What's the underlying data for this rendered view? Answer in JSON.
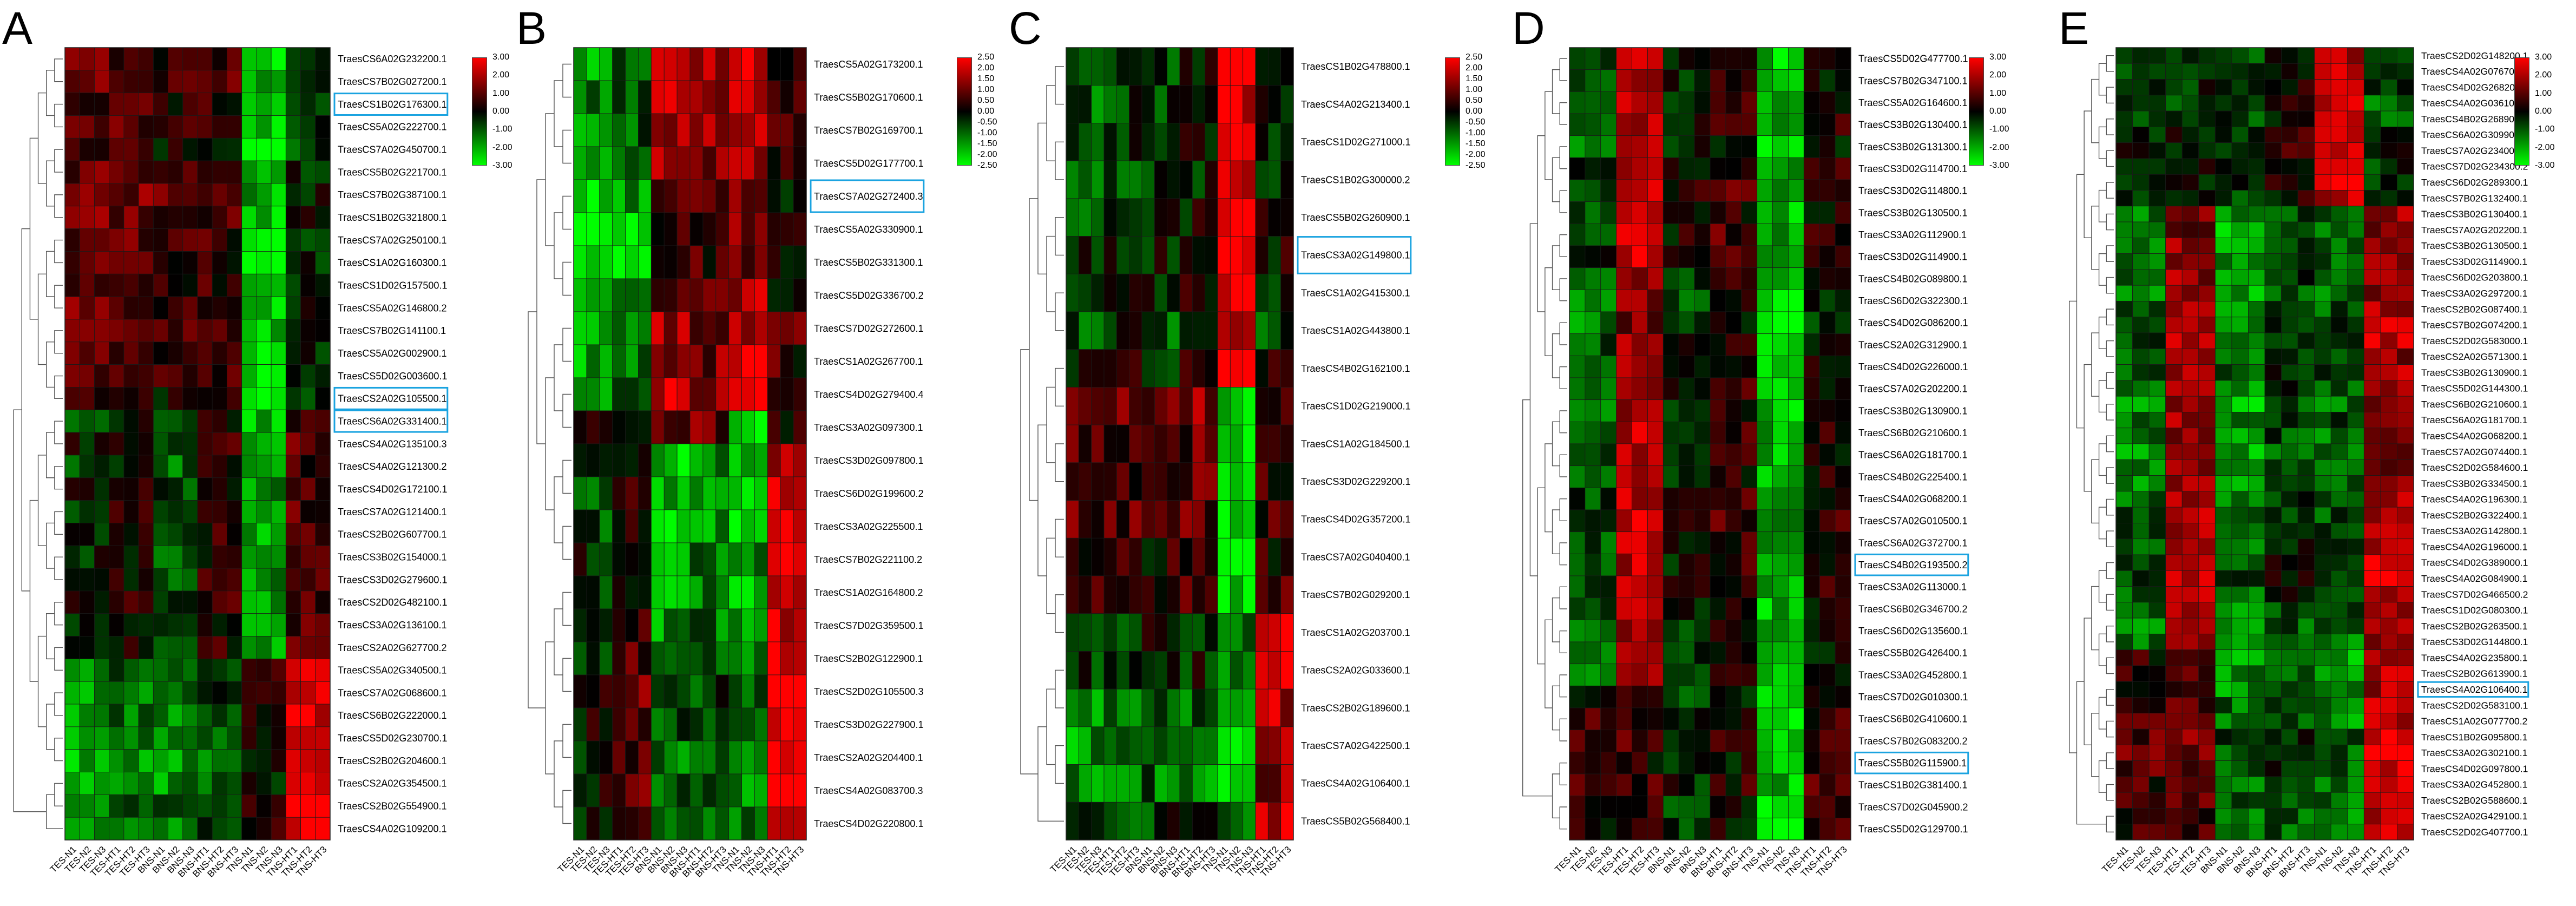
{
  "chart_data": [
    {
      "type": "heatmap",
      "panel": "A",
      "columns": [
        "TES-N1",
        "TES-N2",
        "TES-N3",
        "TES-HT1",
        "TES-HT2",
        "TES-HT3",
        "BNS-N1",
        "BNS-N2",
        "BNS-N3",
        "BNS-HT1",
        "BNS-HT2",
        "BNS-HT3",
        "TNS-N1",
        "TNS-N2",
        "TNS-N3",
        "TNS-HT1",
        "TNS-HT2",
        "TNS-HT3"
      ],
      "rows": [
        "TraesCS6A02G232200.1",
        "TraesCS7B02G027200.1",
        "TraesCS1B02G176300.1",
        "TraesCS5A02G222700.1",
        "TraesCS7A02G450700.1",
        "TraesCS5B02G221700.1",
        "TraesCS7B02G387100.1",
        "TraesCS1B02G321800.1",
        "TraesCS7A02G250100.1",
        "TraesCS1A02G160300.1",
        "TraesCS1D02G157500.1",
        "TraesCS5A02G146800.2",
        "TraesCS7B02G141100.1",
        "TraesCS5A02G002900.1",
        "TraesCS5D02G003600.1",
        "TraesCS2A02G105500.1",
        "TraesCS6A02G331400.1",
        "TraesCS4A02G135100.3",
        "TraesCS4A02G121300.2",
        "TraesCS4D02G172100.1",
        "TraesCS7A02G121400.1",
        "TraesCS2B02G607700.1",
        "TraesCS3B02G154000.1",
        "TraesCS3D02G279600.1",
        "TraesCS2D02G482100.1",
        "TraesCS3A02G136100.1",
        "TraesCS2A02G627700.2",
        "TraesCS5A02G340500.1",
        "TraesCS7A02G068600.1",
        "TraesCS6B02G222000.1",
        "TraesCS5D02G230700.1",
        "TraesCS2B02G204600.1",
        "TraesCS2A02G354500.1",
        "TraesCS2B02G554900.1",
        "TraesCS4A02G109200.1"
      ],
      "highlighted_rows": [
        "TraesCS1B02G176300.1",
        "TraesCS2A02G105500.1",
        "TraesCS6A02G331400.1"
      ],
      "value_range": [
        -3,
        3
      ],
      "legend_ticks": [
        "3.00",
        "2.00",
        "1.00",
        "0.00",
        "-1.00",
        "-2.00",
        "-3.00"
      ],
      "colors": {
        "high": "#ff0000",
        "mid": "#000000",
        "low": "#00ff00",
        "highlight_box": "#1aa3e0"
      },
      "pattern": "top block high in TES/BNS, low in TNS-N; middle block mixed; bottom block high in TNS-HT"
    },
    {
      "type": "heatmap",
      "panel": "B",
      "columns": [
        "TES-N1",
        "TES-N2",
        "TES-N3",
        "TES-HT1",
        "TES-HT2",
        "TES-HT3",
        "BNS-N1",
        "BNS-N2",
        "BNS-N3",
        "BNS-HT1",
        "BNS-HT2",
        "BNS-HT3",
        "TNS-N1",
        "TNS-N2",
        "TNS-N3",
        "TNS-HT1",
        "TNS-HT2",
        "TNS-HT3"
      ],
      "rows": [
        "TraesCS5A02G173200.1",
        "TraesCS5B02G170600.1",
        "TraesCS7B02G169700.1",
        "TraesCS5D02G177700.1",
        "TraesCS7A02G272400.3",
        "TraesCS5A02G330900.1",
        "TraesCS5B02G331300.1",
        "TraesCS5D02G336700.2",
        "TraesCS7D02G272600.1",
        "TraesCS1A02G267700.1",
        "TraesCS4D02G279400.4",
        "TraesCS3A02G097300.1",
        "TraesCS3D02G097800.1",
        "TraesCS6D02G199600.2",
        "TraesCS3A02G225500.1",
        "TraesCS7B02G221100.2",
        "TraesCS1A02G164800.2",
        "TraesCS7D02G359500.1",
        "TraesCS2B02G122900.1",
        "TraesCS2D02G105500.3",
        "TraesCS3D02G227900.1",
        "TraesCS2A02G204400.1",
        "TraesCS4A02G083700.3",
        "TraesCS4D02G220800.1"
      ],
      "highlighted_rows": [
        "TraesCS7A02G272400.3"
      ],
      "value_range": [
        -2.5,
        2.5
      ],
      "legend_ticks": [
        "2.50",
        "2.00",
        "1.50",
        "1.00",
        "0.50",
        "0.00",
        "-0.50",
        "-1.00",
        "-1.50",
        "-2.00",
        "-2.50"
      ],
      "colors": {
        "high": "#ff0000",
        "mid": "#000000",
        "low": "#00ff00",
        "highlight_box": "#1aa3e0"
      },
      "pattern": "top block low in TES, high in BNS/TNS; bottom block high in TNS-HT, low in BNS"
    },
    {
      "type": "heatmap",
      "panel": "C",
      "columns": [
        "TES-N1",
        "TES-N2",
        "TES-N3",
        "TES-HT1",
        "TES-HT2",
        "TES-HT3",
        "BNS-N1",
        "BNS-N2",
        "BNS-N3",
        "BNS-HT1",
        "BNS-HT2",
        "BNS-HT3",
        "TNS-N1",
        "TNS-N2",
        "TNS-N3",
        "TNS-HT1",
        "TNS-HT2",
        "TNS-HT3"
      ],
      "rows": [
        "TraesCS1B02G478800.1",
        "TraesCS4A02G213400.1",
        "TraesCS1D02G271000.1",
        "TraesCS1B02G300000.2",
        "TraesCS5B02G260900.1",
        "TraesCS3A02G149800.1",
        "TraesCS1A02G415300.1",
        "TraesCS1A02G443800.1",
        "TraesCS4B02G162100.1",
        "TraesCS1D02G219000.1",
        "TraesCS1A02G184500.1",
        "TraesCS3D02G229200.1",
        "TraesCS4D02G357200.1",
        "TraesCS7A02G040400.1",
        "TraesCS7B02G029200.1",
        "TraesCS1A02G203700.1",
        "TraesCS2A02G033600.1",
        "TraesCS2B02G189600.1",
        "TraesCS7A02G422500.1",
        "TraesCS4A02G106400.1",
        "TraesCS5B02G568400.1"
      ],
      "highlighted_rows": [
        "TraesCS3A02G149800.1"
      ],
      "value_range": [
        -2.5,
        2.5
      ],
      "legend_ticks": [
        "2.50",
        "2.00",
        "1.50",
        "1.00",
        "0.50",
        "0.00",
        "-0.50",
        "-1.00",
        "-1.50",
        "-2.00",
        "-2.50"
      ],
      "colors": {
        "high": "#ff0000",
        "mid": "#000000",
        "low": "#00ff00",
        "highlight_box": "#1aa3e0"
      },
      "pattern": "top block high in TNS-N; middle block high in TES/BNS, low in TNS-N; bottom block high in TNS-HT"
    },
    {
      "type": "heatmap",
      "panel": "D",
      "columns": [
        "TES-N1",
        "TES-N2",
        "TES-N3",
        "TES-HT1",
        "TES-HT2",
        "TES-HT3",
        "BNS-N1",
        "BNS-N2",
        "BNS-N3",
        "BNS-HT1",
        "BNS-HT2",
        "BNS-HT3",
        "TNS-N1",
        "TNS-N2",
        "TNS-N3",
        "TNS-HT1",
        "TNS-HT2",
        "TNS-HT3"
      ],
      "rows": [
        "TraesCS5D02G477700.1",
        "TraesCS7B02G347100.1",
        "TraesCS5A02G164600.1",
        "TraesCS3B02G130400.1",
        "TraesCS3B02G131300.1",
        "TraesCS3D02G114700.1",
        "TraesCS3D02G114800.1",
        "TraesCS3B02G130500.1",
        "TraesCS3A02G112900.1",
        "TraesCS3D02G114900.1",
        "TraesCS4B02G089800.1",
        "TraesCS6D02G322300.1",
        "TraesCS4D02G086200.1",
        "TraesCS2A02G312900.1",
        "TraesCS4D02G226000.1",
        "TraesCS7A02G202200.1",
        "TraesCS3B02G130900.1",
        "TraesCS6B02G210600.1",
        "TraesCS6A02G181700.1",
        "TraesCS4B02G225400.1",
        "TraesCS4A02G068200.1",
        "TraesCS7A02G010500.1",
        "TraesCS6A02G372700.1",
        "TraesCS4B02G193500.2",
        "TraesCS3A02G113000.1",
        "TraesCS6B02G346700.2",
        "TraesCS6D02G135600.1",
        "TraesCS5B02G426400.1",
        "TraesCS3A02G452800.1",
        "TraesCS7D02G010300.1",
        "TraesCS6B02G410600.1",
        "TraesCS7B02G083200.2",
        "TraesCS5B02G115900.1",
        "TraesCS1B02G381400.1",
        "TraesCS7D02G045900.2",
        "TraesCS5D02G129700.1"
      ],
      "highlighted_rows": [
        "TraesCS4B02G193500.2",
        "TraesCS5B02G115900.1"
      ],
      "value_range": [
        -3,
        3
      ],
      "legend_ticks": [
        "3.00",
        "2.00",
        "1.00",
        "0.00",
        "-1.00",
        "-2.00",
        "-3.00"
      ],
      "colors": {
        "high": "#ff0000",
        "mid": "#000000",
        "low": "#00ff00",
        "highlight_box": "#1aa3e0"
      },
      "pattern": "high in TES-HT, low in TNS-N across most rows"
    },
    {
      "type": "heatmap",
      "panel": "E",
      "columns": [
        "TES-N1",
        "TES-N2",
        "TES-N3",
        "TES-HT1",
        "TES-HT2",
        "TES-HT3",
        "BNS-N1",
        "BNS-N2",
        "BNS-N3",
        "BNS-HT1",
        "BNS-HT2",
        "BNS-HT3",
        "TNS-N1",
        "TNS-N2",
        "TNS-N3",
        "TNS-HT1",
        "TNS-HT2",
        "TNS-HT3"
      ],
      "rows": [
        "TraesCS2D02G148200.1",
        "TraesCS4A02G076700.1",
        "TraesCS4D02G268200.1",
        "TraesCS4A02G036100.1",
        "TraesCS4B02G268900.1",
        "TraesCS6A02G309900.1",
        "TraesCS7A02G234000.1",
        "TraesCS7D02G234300.2",
        "TraesCS6D02G289300.1",
        "TraesCS7B02G132400.1",
        "TraesCS3B02G130400.1",
        "TraesCS7A02G202200.1",
        "TraesCS3B02G130500.1",
        "TraesCS3D02G114900.1",
        "TraesCS6D02G203800.1",
        "TraesCS3A02G297200.1",
        "TraesCS2B02G087400.1",
        "TraesCS7B02G074200.1",
        "TraesCS2D02G583000.1",
        "TraesCS2A02G571300.1",
        "TraesCS3B02G130900.1",
        "TraesCS5D02G144300.1",
        "TraesCS6B02G210600.1",
        "TraesCS6A02G181700.1",
        "TraesCS4A02G068200.1",
        "TraesCS7A02G074400.1",
        "TraesCS2D02G584600.1",
        "TraesCS3B02G334500.1",
        "TraesCS4A02G196300.1",
        "TraesCS2B02G322400.1",
        "TraesCS3A02G142800.1",
        "TraesCS4A02G196000.1",
        "TraesCS4D02G389000.1",
        "TraesCS4A02G084900.1",
        "TraesCS7D02G466500.2",
        "TraesCS1D02G080300.1",
        "TraesCS2B02G263500.1",
        "TraesCS3D02G144800.1",
        "TraesCS4A02G235800.1",
        "TraesCS2B02G613900.1",
        "TraesCS4A02G106400.1",
        "TraesCS2D02G583100.1",
        "TraesCS1A02G077700.2",
        "TraesCS1B02G095800.1",
        "TraesCS3A02G302100.1",
        "TraesCS4D02G097800.1",
        "TraesCS3A02G452800.1",
        "TraesCS2B02G588600.1",
        "TraesCS2A02G429100.1",
        "TraesCS2D02G407700.1"
      ],
      "highlighted_rows": [
        "TraesCS4A02G106400.1"
      ],
      "value_range": [
        -3,
        3
      ],
      "legend_ticks": [
        "3.00",
        "2.00",
        "1.00",
        "0.00",
        "-1.00",
        "-2.00",
        "-3.00"
      ],
      "colors": {
        "high": "#ff0000",
        "mid": "#000000",
        "low": "#00ff00",
        "highlight_box": "#1aa3e0"
      },
      "pattern": "top block high in TNS-N; middle block high in TES-HT/TNS-HT; bottom block high in TNS-HT"
    }
  ]
}
